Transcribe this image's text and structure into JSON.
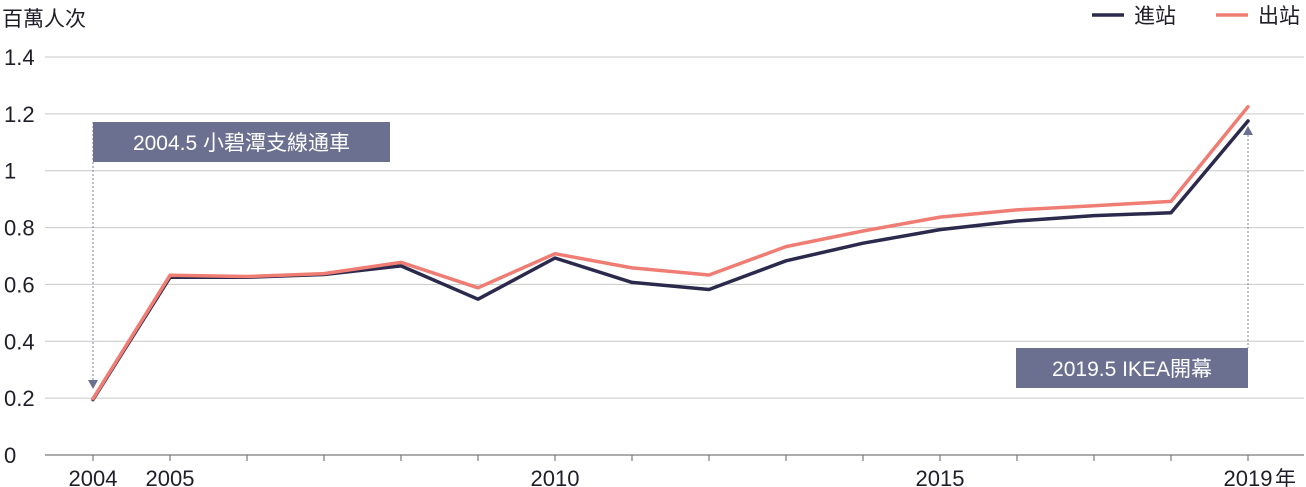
{
  "chart_data": {
    "type": "line",
    "y_unit": "百萬人次",
    "x_unit": "年",
    "x": [
      2004,
      2005,
      2006,
      2007,
      2008,
      2009,
      2010,
      2011,
      2012,
      2013,
      2014,
      2015,
      2016,
      2017,
      2018,
      2019
    ],
    "x_tick_labels": [
      "2004",
      "2005",
      "2010",
      "2015",
      "2019"
    ],
    "y_tick_labels": [
      "0",
      "0.2",
      "0.4",
      "0.6",
      "0.8",
      "1",
      "1.2",
      "1.4"
    ],
    "ylim": [
      0,
      1.4
    ],
    "grid": true,
    "legend_position": "top-right",
    "series": [
      {
        "name": "進站",
        "color": "#2b2a4c",
        "values": [
          0.195,
          0.625,
          0.625,
          0.635,
          0.665,
          0.548,
          0.693,
          0.607,
          0.582,
          0.683,
          0.745,
          0.793,
          0.823,
          0.842,
          0.852,
          1.175
        ]
      },
      {
        "name": "出站",
        "color": "#f07d73",
        "values": [
          0.198,
          0.632,
          0.628,
          0.638,
          0.678,
          0.588,
          0.708,
          0.658,
          0.633,
          0.733,
          0.788,
          0.837,
          0.862,
          0.877,
          0.892,
          1.225
        ]
      }
    ],
    "annotations": [
      {
        "text": "2004.5 小碧潭支線通車",
        "x": 2004,
        "arrow": "down"
      },
      {
        "text": "2019.5 IKEA開幕",
        "x": 2019,
        "arrow": "up"
      }
    ]
  },
  "colors": {
    "annotation_box": "#6b7090",
    "grid": "#c8c8c8",
    "axis": "#7a7a7a"
  }
}
